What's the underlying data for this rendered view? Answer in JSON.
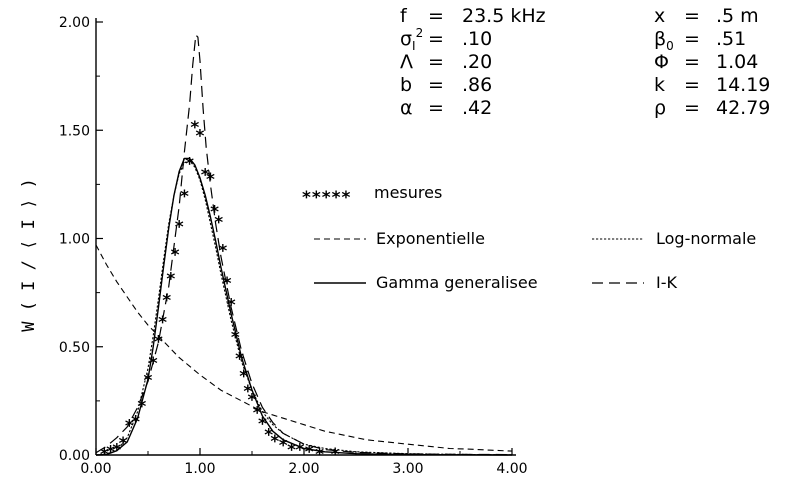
{
  "chart_data": {
    "type": "line",
    "title": "",
    "xlabel": "",
    "ylabel": "W ( I / ⟨ I ⟩ )",
    "xlim": [
      0,
      4
    ],
    "ylim": [
      0,
      2
    ],
    "grid": false,
    "x_ticks": [
      "0.00",
      "1.00",
      "2.00",
      "3.00",
      "4.00"
    ],
    "y_ticks": [
      "0.00",
      "0.50",
      "1.00",
      "1.50",
      "2.00"
    ],
    "parameters_left": [
      {
        "symbol": "f",
        "sup": "",
        "sub": "",
        "eq": "=",
        "value": "23.5  kHz"
      },
      {
        "symbol": "σ",
        "sub": "I",
        "sup": "2",
        "eq": "=",
        "value": ".10"
      },
      {
        "symbol": "Λ",
        "sub": "",
        "sup": "",
        "eq": "=",
        "value": ".20"
      },
      {
        "symbol": "b",
        "sub": "",
        "sup": "",
        "eq": "=",
        "value": ".86"
      },
      {
        "symbol": "α",
        "sub": "",
        "sup": "",
        "eq": "=",
        "value": ".42"
      }
    ],
    "parameters_right": [
      {
        "symbol": "x",
        "sub": "",
        "eq": "=",
        "value": ".5  m"
      },
      {
        "symbol": "β",
        "sub": "0",
        "eq": "=",
        "value": ".51"
      },
      {
        "symbol": "Φ",
        "sub": "",
        "eq": "=",
        "value": "1.04"
      },
      {
        "symbol": "k",
        "sub": "",
        "eq": "=",
        "value": "14.19"
      },
      {
        "symbol": "ρ",
        "sub": "",
        "eq": "=",
        "value": "42.79"
      }
    ],
    "legend": [
      {
        "name": "mesures",
        "marker": "*****"
      },
      {
        "name": "Exponentielle",
        "style": "dashed"
      },
      {
        "name": "Log-normale",
        "style": "dotted"
      },
      {
        "name": "Gamma generalisee",
        "style": "solid"
      },
      {
        "name": "I-K",
        "style": "long-dashed"
      }
    ],
    "series": [
      {
        "name": "mesures",
        "kind": "markers",
        "x": [
          0.08,
          0.14,
          0.2,
          0.26,
          0.32,
          0.38,
          0.44,
          0.5,
          0.55,
          0.6,
          0.64,
          0.68,
          0.72,
          0.76,
          0.8,
          0.85,
          0.9,
          0.95,
          1.0,
          1.05,
          1.1,
          1.14,
          1.18,
          1.22,
          1.26,
          1.3,
          1.34,
          1.38,
          1.42,
          1.46,
          1.5,
          1.55,
          1.6,
          1.66,
          1.72,
          1.8,
          1.88,
          1.96,
          2.05,
          2.15,
          2.3
        ],
        "y": [
          0.01,
          0.02,
          0.03,
          0.06,
          0.14,
          0.16,
          0.23,
          0.35,
          0.43,
          0.53,
          0.62,
          0.72,
          0.82,
          0.93,
          1.06,
          1.2,
          1.35,
          1.52,
          1.48,
          1.3,
          1.28,
          1.13,
          1.08,
          0.95,
          0.8,
          0.7,
          0.55,
          0.45,
          0.37,
          0.3,
          0.26,
          0.2,
          0.15,
          0.1,
          0.07,
          0.05,
          0.03,
          0.03,
          0.02,
          0.01,
          0.01
        ]
      },
      {
        "name": "Exponentielle",
        "kind": "line",
        "x": [
          0,
          0.1,
          0.2,
          0.3,
          0.4,
          0.5,
          0.6,
          0.7,
          0.8,
          0.9,
          1.0,
          1.2,
          1.4,
          1.6,
          1.8,
          2.0,
          2.2,
          2.4,
          2.6,
          2.8,
          3.0,
          3.2,
          3.4,
          3.6,
          3.8,
          4.0
        ],
        "y": [
          0.97,
          0.88,
          0.8,
          0.73,
          0.66,
          0.6,
          0.55,
          0.5,
          0.45,
          0.41,
          0.37,
          0.3,
          0.25,
          0.2,
          0.17,
          0.14,
          0.11,
          0.09,
          0.07,
          0.06,
          0.05,
          0.04,
          0.03,
          0.027,
          0.022,
          0.018
        ]
      },
      {
        "name": "Log-normale",
        "kind": "line",
        "x": [
          0,
          0.1,
          0.2,
          0.3,
          0.4,
          0.5,
          0.55,
          0.6,
          0.65,
          0.7,
          0.75,
          0.8,
          0.85,
          0.9,
          0.95,
          1.0,
          1.05,
          1.1,
          1.15,
          1.2,
          1.3,
          1.4,
          1.5,
          1.6,
          1.7,
          1.8,
          2.0,
          2.2,
          2.5,
          3.0,
          3.5,
          4.0
        ],
        "y": [
          0,
          0.005,
          0.02,
          0.08,
          0.2,
          0.4,
          0.55,
          0.72,
          0.9,
          1.07,
          1.2,
          1.3,
          1.35,
          1.36,
          1.33,
          1.27,
          1.18,
          1.07,
          0.96,
          0.84,
          0.62,
          0.43,
          0.3,
          0.2,
          0.14,
          0.1,
          0.05,
          0.03,
          0.015,
          0.006,
          0.003,
          0.001
        ]
      },
      {
        "name": "Gamma generalisee",
        "kind": "line",
        "x": [
          0,
          0.1,
          0.2,
          0.3,
          0.4,
          0.5,
          0.55,
          0.6,
          0.65,
          0.7,
          0.75,
          0.8,
          0.85,
          0.9,
          0.95,
          1.0,
          1.05,
          1.1,
          1.15,
          1.2,
          1.3,
          1.4,
          1.5,
          1.6,
          1.7,
          1.8,
          2.0,
          2.2,
          2.5,
          3.0,
          3.5,
          4.0
        ],
        "y": [
          0,
          0.002,
          0.02,
          0.06,
          0.17,
          0.35,
          0.5,
          0.68,
          0.87,
          1.05,
          1.2,
          1.31,
          1.37,
          1.37,
          1.34,
          1.28,
          1.2,
          1.1,
          0.99,
          0.87,
          0.65,
          0.45,
          0.3,
          0.18,
          0.11,
          0.07,
          0.03,
          0.015,
          0.006,
          0.002,
          0.001,
          0
        ]
      },
      {
        "name": "I-K",
        "kind": "line",
        "x": [
          0,
          0.1,
          0.2,
          0.3,
          0.4,
          0.5,
          0.6,
          0.7,
          0.8,
          0.85,
          0.9,
          0.93,
          0.96,
          0.98,
          1.0,
          1.03,
          1.06,
          1.1,
          1.15,
          1.2,
          1.3,
          1.4,
          1.5,
          1.6,
          1.7,
          1.8,
          2.0,
          2.2,
          2.5,
          3.0,
          3.5,
          4.0
        ],
        "y": [
          0.01,
          0.04,
          0.08,
          0.13,
          0.22,
          0.34,
          0.52,
          0.78,
          1.15,
          1.4,
          1.62,
          1.8,
          1.94,
          1.93,
          1.82,
          1.6,
          1.42,
          1.25,
          1.07,
          0.92,
          0.68,
          0.48,
          0.33,
          0.22,
          0.15,
          0.1,
          0.05,
          0.025,
          0.012,
          0.005,
          0.003,
          0.002
        ]
      }
    ]
  }
}
